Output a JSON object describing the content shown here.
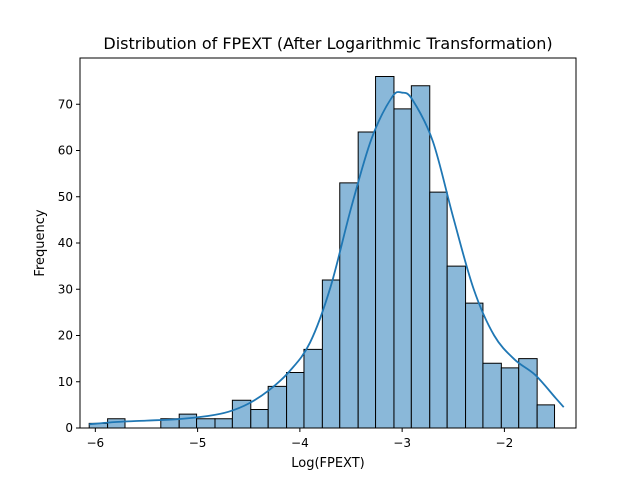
{
  "chart_data": {
    "type": "bar",
    "title": "Distribution of FPEXT (After Logarithmic Transformation)",
    "xlabel": "Log(FPEXT)",
    "ylabel": "Frequency",
    "xlim": [
      -6.15,
      -1.3
    ],
    "ylim": [
      0,
      80
    ],
    "xticks": [
      -6,
      -5,
      -4,
      -3,
      -2
    ],
    "yticks": [
      0,
      10,
      20,
      30,
      40,
      50,
      60,
      70
    ],
    "bin_edges": [
      -6.06,
      -5.88,
      -5.71,
      -5.53,
      -5.36,
      -5.18,
      -5.01,
      -4.83,
      -4.66,
      -4.48,
      -4.31,
      -4.13,
      -3.96,
      -3.78,
      -3.61,
      -3.43,
      -3.26,
      -3.08,
      -2.91,
      -2.73,
      -2.56,
      -2.38,
      -2.21,
      -2.03,
      -1.86,
      -1.68,
      -1.51,
      -1.33
    ],
    "values": [
      1,
      2,
      0,
      0,
      2,
      3,
      2,
      2,
      6,
      4,
      9,
      12,
      17,
      32,
      53,
      64,
      76,
      69,
      74,
      51,
      35,
      27,
      14,
      13,
      15,
      5,
      0
    ],
    "kde": {
      "x": [
        -6.06,
        -5.8,
        -5.5,
        -5.2,
        -4.9,
        -4.7,
        -4.5,
        -4.3,
        -4.1,
        -3.9,
        -3.7,
        -3.5,
        -3.3,
        -3.1,
        -3.0,
        -2.9,
        -2.7,
        -2.5,
        -2.3,
        -2.1,
        -1.9,
        -1.7,
        -1.5,
        -1.42
      ],
      "y": [
        0.8,
        1.3,
        1.6,
        1.9,
        2.6,
        3.5,
        5.3,
        8.2,
        12.3,
        18.5,
        30.5,
        47.5,
        62.5,
        71.5,
        72.5,
        71.0,
        62.0,
        45.5,
        30.0,
        20.0,
        14.8,
        11.5,
        6.5,
        4.5
      ]
    },
    "color": "#8ab8d9",
    "kde_color": "#1f77b4",
    "grid": false
  }
}
